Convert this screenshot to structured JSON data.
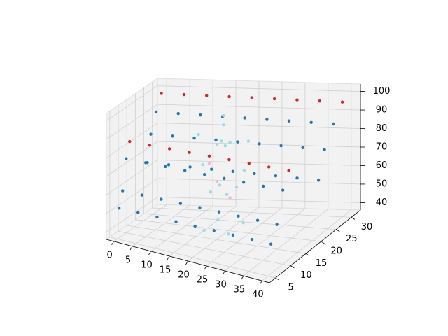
{
  "chart_data": {
    "type": "scatter3d",
    "xlim": [
      -2,
      42
    ],
    "ylim": [
      3,
      33
    ],
    "zlim": [
      36,
      104
    ],
    "xticks": [
      0,
      5,
      10,
      15,
      20,
      25,
      30,
      35,
      40
    ],
    "yticks": [
      5,
      10,
      15,
      20,
      25,
      30
    ],
    "zticks": [
      40,
      50,
      60,
      70,
      80,
      90,
      100
    ],
    "grid": true,
    "series": [
      {
        "color": "#d62728",
        "x": [
          0,
          5,
          10,
          15,
          20,
          25,
          30,
          35,
          40
        ],
        "y": [
          30,
          30,
          30,
          30,
          30,
          30,
          30,
          30,
          30
        ],
        "z": [
          98,
          98,
          98,
          98,
          98,
          98,
          98,
          98,
          98
        ]
      },
      {
        "color": "#d62728",
        "x": [
          0,
          5,
          10,
          15,
          20,
          25,
          30,
          35,
          40
        ],
        "y": [
          12,
          12,
          12,
          12,
          12,
          12,
          12,
          12,
          12
        ],
        "z": [
          84,
          84,
          84,
          84,
          84,
          84,
          84,
          84,
          84
        ]
      },
      {
        "color": "#1f77b4",
        "x": [
          0,
          5,
          10,
          15,
          20,
          25,
          30,
          35,
          40
        ],
        "y": [
          27,
          27,
          27,
          27,
          27,
          27,
          27,
          27,
          27
        ],
        "z": [
          90,
          90,
          90,
          90,
          90,
          90,
          90,
          90,
          90
        ]
      },
      {
        "color": "#1f77b4",
        "x": [
          0,
          5,
          10,
          15,
          20,
          25,
          30,
          35,
          40
        ],
        "y": [
          24,
          24,
          24,
          24,
          24,
          24,
          24,
          24,
          24
        ],
        "z": [
          80,
          80,
          80,
          80,
          80,
          80,
          80,
          80,
          80
        ]
      },
      {
        "color": "#1f77b4",
        "x": [
          0,
          5,
          10,
          15,
          20,
          25,
          30,
          35,
          40
        ],
        "y": [
          10,
          10,
          10,
          10,
          10,
          10,
          10,
          10,
          10
        ],
        "z": [
          76,
          76,
          76,
          76,
          76,
          76,
          76,
          76,
          76
        ]
      },
      {
        "color": "#1f77b4",
        "x": [
          0,
          5,
          10,
          15,
          20,
          25,
          30,
          35,
          40
        ],
        "y": [
          22,
          22,
          22,
          22,
          22,
          22,
          22,
          22,
          22
        ],
        "z": [
          66,
          66,
          66,
          66,
          66,
          66,
          66,
          66,
          66
        ]
      },
      {
        "color": "#1f77b4",
        "x": [
          0,
          5,
          10,
          15,
          20,
          25,
          30,
          35,
          40
        ],
        "y": [
          8,
          8,
          8,
          8,
          8,
          8,
          8,
          8,
          8
        ],
        "z": [
          60,
          60,
          60,
          60,
          60,
          60,
          60,
          60,
          60
        ]
      },
      {
        "color": "#1f77b4",
        "x": [
          0,
          5,
          10,
          15,
          20,
          25,
          30,
          35,
          40
        ],
        "y": [
          6,
          6,
          6,
          6,
          6,
          6,
          6,
          6,
          6
        ],
        "z": [
          52,
          52,
          52,
          52,
          52,
          52,
          52,
          52,
          52
        ]
      },
      {
        "color": "#9edae5",
        "x": [
          17,
          23,
          17,
          23,
          18,
          22,
          18,
          22,
          19,
          21,
          19,
          21,
          20,
          14,
          26,
          15,
          25,
          20
        ],
        "y": [
          15,
          15,
          21,
          21,
          16,
          16,
          20,
          20,
          17,
          17,
          19,
          19,
          18,
          18,
          18,
          18,
          18,
          18
        ],
        "z": [
          40,
          40,
          40,
          40,
          60,
          60,
          60,
          60,
          85,
          85,
          85,
          85,
          100,
          88,
          88,
          72,
          72,
          95
        ]
      },
      {
        "color": "#f7b6d2",
        "x": [
          19,
          21,
          20
        ],
        "y": [
          17,
          19,
          12
        ],
        "z": [
          65,
          55,
          80
        ]
      }
    ]
  }
}
